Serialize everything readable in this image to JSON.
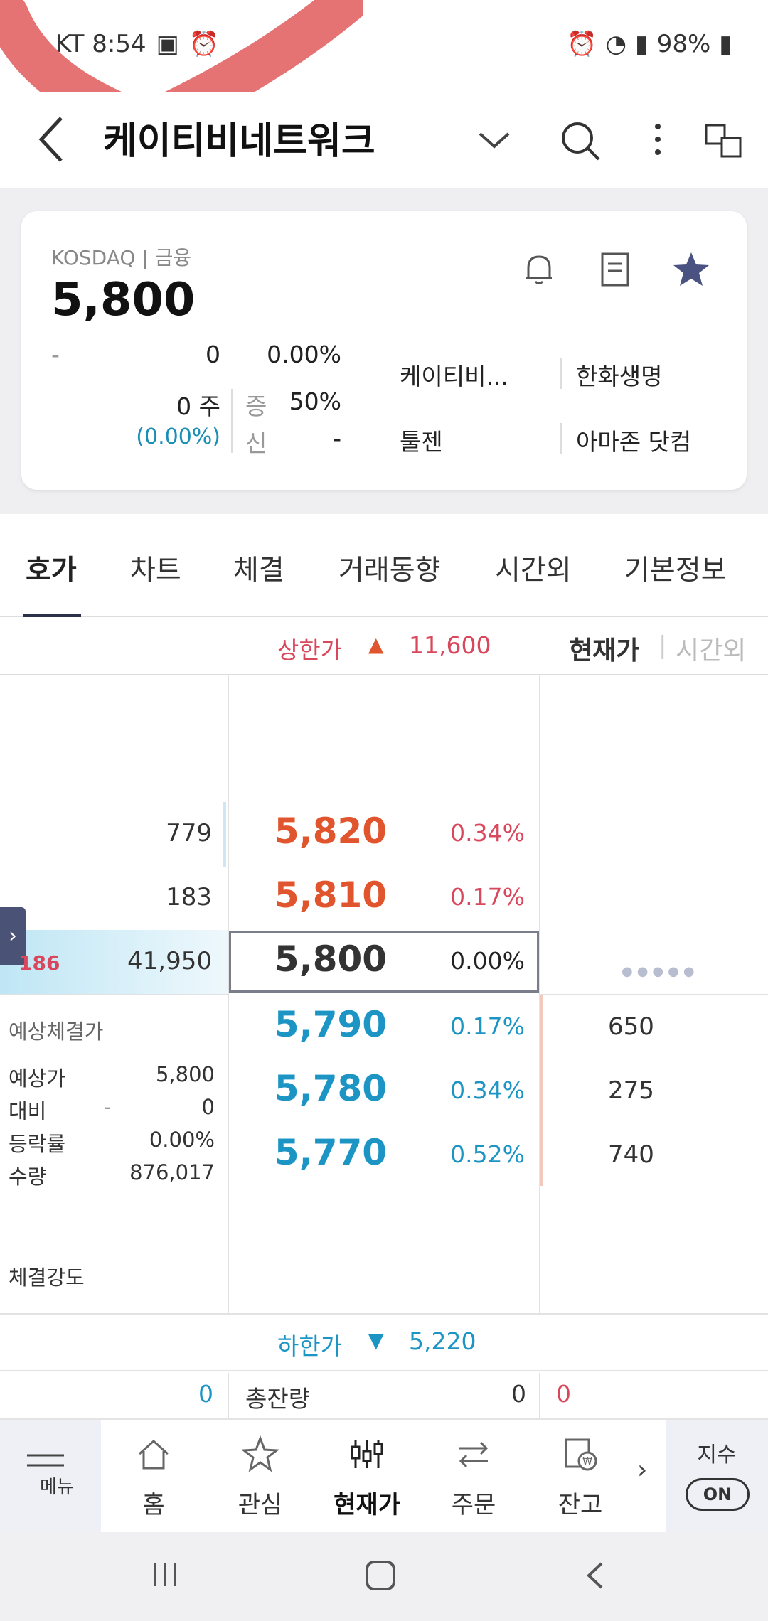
{
  "status_bar": {
    "carrier_time": "KT 8:54",
    "battery": "98%"
  },
  "header": {
    "title": "케이티비네트워크"
  },
  "summary": {
    "market": "KOSDAQ | 금융",
    "price": "5,800",
    "change_sign": "-",
    "change": "0",
    "change_pct": "0.00%",
    "volume": "0 주",
    "volume_pct": "(0.00%)",
    "margin_label": "증",
    "margin_value": "50%",
    "credit_label": "신",
    "credit_value": "-",
    "related": [
      "케이티비...",
      "한화생명",
      "툴젠",
      "아마존 닷컴"
    ]
  },
  "tabs": [
    "호가",
    "차트",
    "체결",
    "거래동향",
    "시간외",
    "기본정보"
  ],
  "limits": {
    "upper_label": "상한가",
    "upper_value": "11,600",
    "lower_label": "하한가",
    "lower_value": "5,220",
    "toggle_current": "현재가",
    "toggle_after": "시간외"
  },
  "orderbook": {
    "asks": [
      {
        "qty": "779",
        "price": "5,820",
        "pct": "0.34%"
      },
      {
        "qty": "183",
        "price": "5,810",
        "pct": "0.17%"
      }
    ],
    "current": {
      "tick": "186",
      "qty": "41,950",
      "price": "5,800",
      "pct": "0.00%"
    },
    "bids": [
      {
        "price": "5,790",
        "pct": "0.17%",
        "qty": "650"
      },
      {
        "price": "5,780",
        "pct": "0.34%",
        "qty": "275"
      },
      {
        "price": "5,770",
        "pct": "0.52%",
        "qty": "740"
      }
    ]
  },
  "expected": {
    "title": "예상체결가",
    "rows": [
      {
        "label": "예상가",
        "value": "5,800"
      },
      {
        "label": "대비",
        "sign": "-",
        "value": "0"
      },
      {
        "label": "등락률",
        "value": "0.00%"
      },
      {
        "label": "수량",
        "value": "876,017"
      }
    ],
    "strength_label": "체결강도"
  },
  "totals": {
    "left": "0",
    "label": "총잔량",
    "mid": "0",
    "right": "0"
  },
  "bottom_nav": {
    "menu": "메뉴",
    "items": [
      "홈",
      "관심",
      "현재가",
      "주문",
      "잔고"
    ],
    "index_label": "지수",
    "index_toggle": "ON"
  }
}
